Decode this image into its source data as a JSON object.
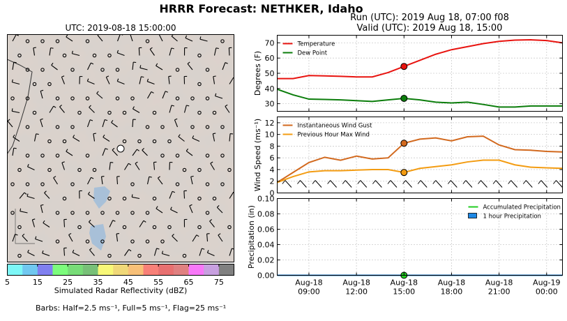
{
  "header": {
    "title": "HRRR Forecast: NETHKER, Idaho",
    "run": "Run (UTC): 2019 Aug 18, 07:00 f08",
    "valid": "Valid (UTC): 2019 Aug 18, 15:00"
  },
  "map": {
    "title": "UTC: 2019-08-18 15:00:00",
    "colorbar_label": "Simulated Radar Reflectivity (dBZ)",
    "colorbar_ticks": [
      "5",
      "15",
      "25",
      "35",
      "45",
      "55",
      "65",
      "75"
    ],
    "colorbar_colors": [
      "#7df7f7",
      "#70c8f0",
      "#8080f0",
      "#7cfc7c",
      "#78dc78",
      "#78c078",
      "#f8f878",
      "#f0d878",
      "#f8c078",
      "#f88078",
      "#e87070",
      "#e08080",
      "#f878f8",
      "#c8a0e0",
      "#808080"
    ],
    "barbs_note": "Barbs: Half=2.5 ms⁻¹, Full=5 ms⁻¹, Flag=25 ms⁻¹"
  },
  "x_ticks": [
    {
      "t": 9,
      "line1": "Aug-18",
      "line2": "09:00"
    },
    {
      "t": 12,
      "line1": "Aug-18",
      "line2": "12:00"
    },
    {
      "t": 15,
      "line1": "Aug-18",
      "line2": "15:00"
    },
    {
      "t": 18,
      "line1": "Aug-18",
      "line2": "18:00"
    },
    {
      "t": 21,
      "line1": "Aug-18",
      "line2": "21:00"
    },
    {
      "t": 24,
      "line1": "Aug-19",
      "line2": "00:00"
    }
  ],
  "chart_data": [
    {
      "type": "line",
      "ylabel": "Degrees (F)",
      "ylim": [
        25,
        75
      ],
      "yticks": [
        30,
        40,
        50,
        60,
        70
      ],
      "xlim": [
        7,
        25
      ],
      "x": [
        7,
        8,
        9,
        10,
        11,
        12,
        13,
        14,
        15,
        16,
        17,
        18,
        19,
        20,
        21,
        22,
        23,
        24,
        25
      ],
      "series": [
        {
          "name": "Temperature",
          "color": "#e8130f",
          "values": [
            46.5,
            46.5,
            48.5,
            48.3,
            48.0,
            47.6,
            47.6,
            50.5,
            54.5,
            58.5,
            62.5,
            65.5,
            67.5,
            69.5,
            71.0,
            71.8,
            72.0,
            71.5,
            70.0
          ]
        },
        {
          "name": "Dew Point",
          "color": "#0b7d0b",
          "values": [
            39.5,
            35.8,
            33.0,
            32.8,
            32.5,
            32.0,
            31.5,
            32.5,
            33.5,
            32.5,
            31.0,
            30.5,
            31.0,
            29.5,
            27.8,
            27.8,
            28.5,
            28.5,
            28.5
          ]
        }
      ],
      "markers": [
        {
          "series": "Temperature",
          "x": 15,
          "y": 54.5
        },
        {
          "series": "Dew Point",
          "x": 15,
          "y": 33.5
        }
      ],
      "legend": "top-left",
      "grid": true
    },
    {
      "type": "line",
      "ylabel": "Wind Speed (ms⁻¹)",
      "ylim": [
        0,
        13
      ],
      "yticks": [
        0,
        2,
        4,
        6,
        8,
        10,
        12
      ],
      "xlim": [
        7,
        25
      ],
      "x": [
        7,
        8,
        9,
        10,
        11,
        12,
        13,
        14,
        15,
        16,
        17,
        18,
        19,
        20,
        21,
        22,
        23,
        24,
        25
      ],
      "series": [
        {
          "name": "Instantaneous Wind Gust",
          "color": "#d2691e",
          "values": [
            1.8,
            3.5,
            5.2,
            6.1,
            5.6,
            6.3,
            5.8,
            6.0,
            8.5,
            9.2,
            9.4,
            8.9,
            9.6,
            9.7,
            8.2,
            7.4,
            7.3,
            7.1,
            7.0
          ]
        },
        {
          "name": "Previous Hour Max Wind",
          "color": "#f39c12",
          "values": [
            1.8,
            2.8,
            3.6,
            3.8,
            3.8,
            3.9,
            4.0,
            4.0,
            3.5,
            4.2,
            4.5,
            4.8,
            5.3,
            5.6,
            5.6,
            4.8,
            4.4,
            4.3,
            4.2
          ]
        }
      ],
      "markers": [
        {
          "series": "Instantaneous Wind Gust",
          "x": 15,
          "y": 8.5
        },
        {
          "series": "Previous Hour Max Wind",
          "x": 15,
          "y": 3.5
        }
      ],
      "legend": "top-left",
      "grid": true
    },
    {
      "type": "line",
      "ylabel": "Precipitation (in)",
      "ylim": [
        0,
        0.1
      ],
      "yticks": [
        "0.00",
        "0.02",
        "0.04",
        "0.06",
        "0.08",
        "0.10"
      ],
      "xlim": [
        7,
        25
      ],
      "x": [
        7,
        8,
        9,
        10,
        11,
        12,
        13,
        14,
        15,
        16,
        17,
        18,
        19,
        20,
        21,
        22,
        23,
        24,
        25
      ],
      "series": [
        {
          "name": "Accumulated Precipitation",
          "color": "#22cc22",
          "values": [
            0,
            0,
            0,
            0,
            0,
            0,
            0,
            0,
            0,
            0,
            0,
            0,
            0,
            0,
            0,
            0,
            0,
            0,
            0
          ]
        },
        {
          "name": "1 hour Precipitation",
          "color": "#1e88e5",
          "values": [
            0,
            0,
            0,
            0,
            0,
            0,
            0,
            0,
            0,
            0,
            0,
            0,
            0,
            0,
            0,
            0,
            0,
            0,
            0
          ]
        }
      ],
      "markers": [
        {
          "series": "Accumulated Precipitation",
          "x": 15,
          "y": 0
        }
      ],
      "legend": "top-right",
      "grid": true
    }
  ]
}
